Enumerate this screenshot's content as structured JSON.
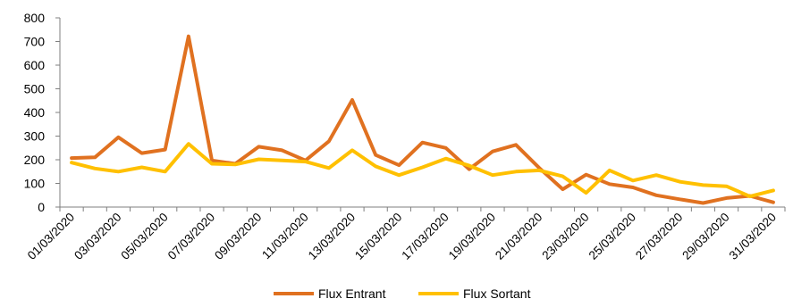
{
  "chart_data": {
    "type": "line",
    "x": [
      "01/03/2020",
      "02/03/2020",
      "03/03/2020",
      "04/03/2020",
      "05/03/2020",
      "06/03/2020",
      "07/03/2020",
      "08/03/2020",
      "09/03/2020",
      "10/03/2020",
      "11/03/2020",
      "12/03/2020",
      "13/03/2020",
      "14/03/2020",
      "15/03/2020",
      "16/03/2020",
      "17/03/2020",
      "18/03/2020",
      "19/03/2020",
      "20/03/2020",
      "21/03/2020",
      "22/03/2020",
      "23/03/2020",
      "24/03/2020",
      "25/03/2020",
      "26/03/2020",
      "27/03/2020",
      "28/03/2020",
      "29/03/2020",
      "30/03/2020",
      "31/03/2020"
    ],
    "x_tick_labels": [
      "01/03/2020",
      "03/03/2020",
      "05/03/2020",
      "07/03/2020",
      "09/03/2020",
      "11/03/2020",
      "13/03/2020",
      "15/03/2020",
      "17/03/2020",
      "19/03/2020",
      "21/03/2020",
      "23/03/2020",
      "25/03/2020",
      "27/03/2020",
      "29/03/2020",
      "31/03/2020"
    ],
    "y_ticks": [
      "0",
      "100",
      "200",
      "300",
      "400",
      "500",
      "600",
      "700",
      "800"
    ],
    "ylim": [
      0,
      800
    ],
    "grid": false,
    "legend": "bottom",
    "title": "",
    "xlabel": "",
    "ylabel": "",
    "series": [
      {
        "name": "Flux Entrant",
        "color": "#E07120",
        "values": [
          207,
          210,
          295,
          228,
          243,
          722,
          197,
          183,
          255,
          240,
          197,
          278,
          453,
          220,
          177,
          273,
          250,
          160,
          235,
          263,
          165,
          75,
          137,
          97,
          83,
          50,
          33,
          17,
          38,
          47,
          20
        ]
      },
      {
        "name": "Flux Sortant",
        "color": "#FFC000",
        "values": [
          188,
          163,
          150,
          168,
          150,
          267,
          183,
          180,
          202,
          197,
          192,
          165,
          240,
          172,
          135,
          168,
          205,
          175,
          135,
          150,
          155,
          130,
          60,
          155,
          112,
          135,
          107,
          93,
          88,
          45,
          70
        ]
      }
    ]
  }
}
